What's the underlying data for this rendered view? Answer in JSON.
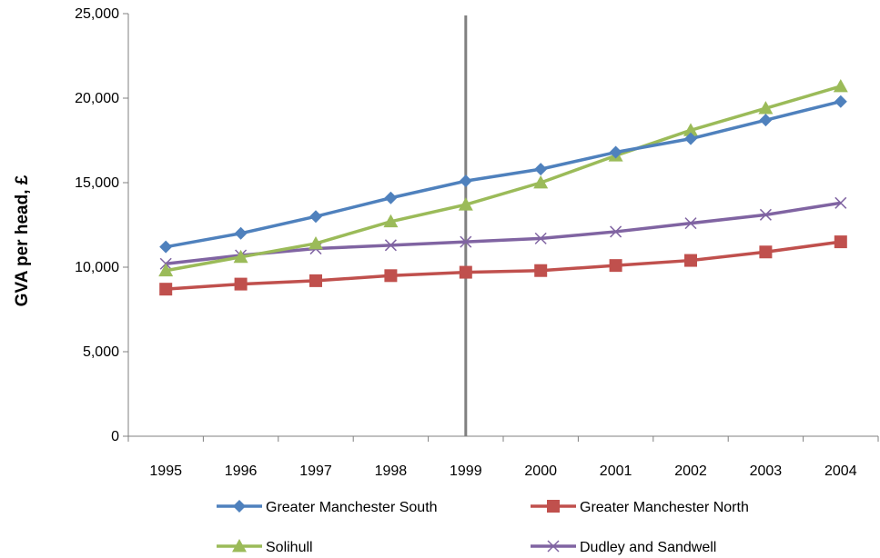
{
  "chart_data": {
    "type": "line",
    "title": "",
    "xlabel": "",
    "ylabel": "GVA per head, £",
    "x": [
      "1995",
      "1996",
      "1997",
      "1998",
      "1999",
      "2000",
      "2001",
      "2002",
      "2003",
      "2004"
    ],
    "ylim": [
      0,
      25000
    ],
    "yticks": [
      0,
      5000,
      10000,
      15000,
      20000,
      25000
    ],
    "ytick_labels": [
      "0",
      "5,000",
      "10,000",
      "15,000",
      "20,000",
      "25,000"
    ],
    "grid": false,
    "legend_position": "bottom",
    "reference_line": {
      "x": "1999",
      "color": "#808080"
    },
    "series": [
      {
        "name": "Greater Manchester South",
        "color": "#4F81BD",
        "marker": "diamond",
        "values": [
          11200,
          12000,
          13000,
          14100,
          15100,
          15800,
          16800,
          17600,
          18700,
          19800
        ]
      },
      {
        "name": "Greater Manchester North",
        "color": "#C0504D",
        "marker": "square",
        "values": [
          8700,
          9000,
          9200,
          9500,
          9700,
          9800,
          10100,
          10400,
          10900,
          11500
        ]
      },
      {
        "name": "Solihull",
        "color": "#9BBB59",
        "marker": "triangle",
        "values": [
          9800,
          10600,
          11400,
          12700,
          13700,
          15000,
          16600,
          18100,
          19400,
          20700
        ]
      },
      {
        "name": "Dudley and Sandwell",
        "color": "#8064A2",
        "marker": "x",
        "values": [
          10200,
          10700,
          11100,
          11300,
          11500,
          11700,
          12100,
          12600,
          13100,
          13800
        ]
      }
    ]
  }
}
